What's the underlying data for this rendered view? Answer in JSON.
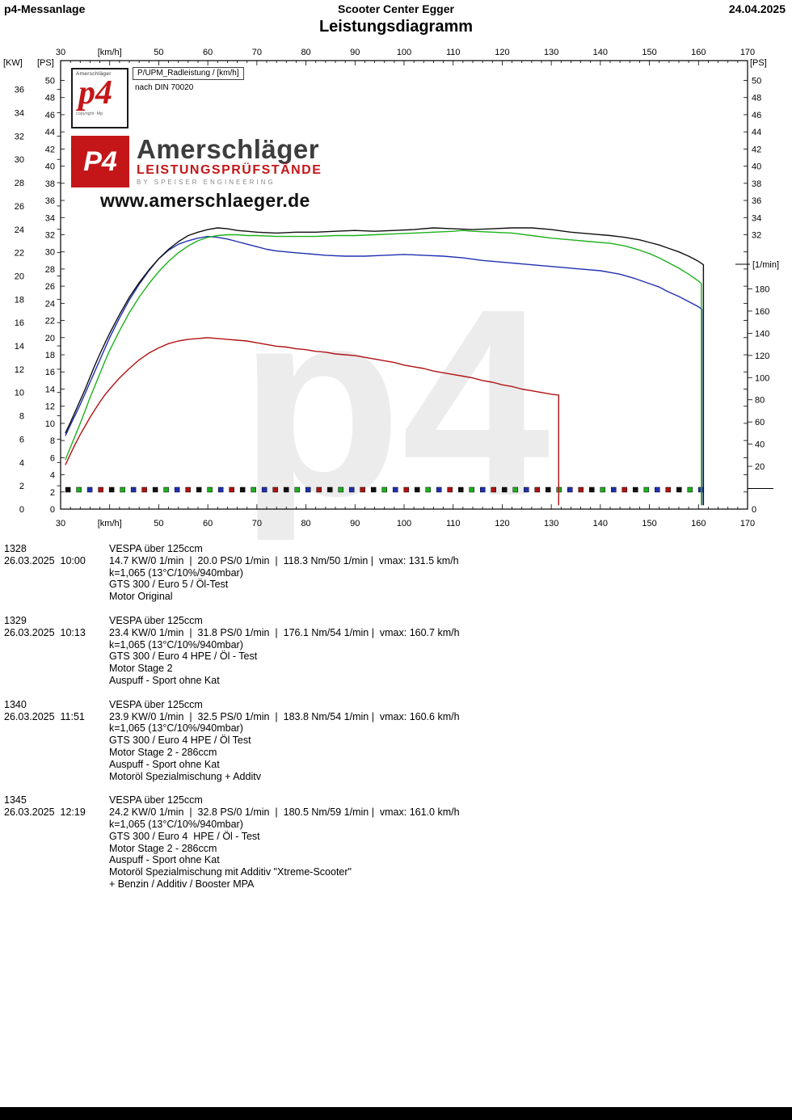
{
  "header": {
    "app": "p4-Messanlage",
    "center": "Scooter Center Egger",
    "date": "24.04.2025",
    "title": "Leistungsdiagramm"
  },
  "legend": {
    "line1": "P/UPM_Radleistung / [km/h]",
    "line2": "nach DIN 70020"
  },
  "branding": {
    "logo_box": {
      "top": "Amerschläger",
      "main": "p4",
      "bottom": "copyright ·Mp"
    },
    "banner": {
      "logo": "P4",
      "name": "Amerschläger",
      "sub": "LEISTUNGSPRÜFSTÄNDE",
      "sub2": "BY SPEISER ENGINEERING",
      "url": "www.amerschlaeger.de"
    },
    "red": "#c41619",
    "dark": "#3d3d3d"
  },
  "watermark": "p4",
  "chart_data": {
    "type": "line",
    "title": "Leistungsdiagramm",
    "x_axis": {
      "label": "[km/h]",
      "min": 30,
      "max": 170,
      "tick_values": [
        30,
        50,
        60,
        70,
        80,
        90,
        100,
        110,
        120,
        130,
        140,
        150,
        160,
        170
      ],
      "unit_label_at": 40
    },
    "ps_axis": {
      "label": "[PS]",
      "min": 0,
      "max": 50,
      "step": 2
    },
    "kw_axis": {
      "label": "[KW]",
      "min": 0,
      "max": 36,
      "step": 2,
      "ps_per_kw": 1.35962
    },
    "rpm_axis": {
      "label": "[1/min]",
      "min": 0,
      "max": 180,
      "step": 20
    },
    "rpm_trace": {
      "value": 0,
      "start_kmh": 31.5,
      "end_kmh": 160.5,
      "count": 59,
      "colors": [
        "#101010",
        "#1db11d",
        "#2030b0",
        "#b01212"
      ]
    },
    "grid": false,
    "series": [
      {
        "run": "1328",
        "name": "Motor Original",
        "color": "#b01212",
        "peak_ps": 20.0,
        "vmax_kmh": 131.5,
        "points": [
          [
            31,
            5.2
          ],
          [
            32,
            6.4
          ],
          [
            33,
            7.6
          ],
          [
            34,
            8.7
          ],
          [
            35,
            9.7
          ],
          [
            36,
            10.7
          ],
          [
            37,
            11.6
          ],
          [
            38,
            12.5
          ],
          [
            39,
            13.3
          ],
          [
            40,
            14.0
          ],
          [
            42,
            15.3
          ],
          [
            44,
            16.4
          ],
          [
            46,
            17.4
          ],
          [
            48,
            18.2
          ],
          [
            50,
            18.8
          ],
          [
            52,
            19.3
          ],
          [
            54,
            19.6
          ],
          [
            56,
            19.8
          ],
          [
            58,
            19.9
          ],
          [
            60,
            20.0
          ],
          [
            62,
            19.9
          ],
          [
            64,
            19.8
          ],
          [
            66,
            19.7
          ],
          [
            68,
            19.6
          ],
          [
            70,
            19.4
          ],
          [
            72,
            19.2
          ],
          [
            74,
            19.0
          ],
          [
            76,
            18.9
          ],
          [
            78,
            18.7
          ],
          [
            80,
            18.6
          ],
          [
            82,
            18.4
          ],
          [
            84,
            18.3
          ],
          [
            86,
            18.1
          ],
          [
            88,
            18.0
          ],
          [
            90,
            17.9
          ],
          [
            92,
            17.7
          ],
          [
            94,
            17.5
          ],
          [
            96,
            17.3
          ],
          [
            98,
            17.1
          ],
          [
            100,
            16.8
          ],
          [
            102,
            16.6
          ],
          [
            104,
            16.4
          ],
          [
            106,
            16.1
          ],
          [
            108,
            15.9
          ],
          [
            110,
            15.7
          ],
          [
            112,
            15.5
          ],
          [
            114,
            15.3
          ],
          [
            116,
            15.0
          ],
          [
            118,
            14.8
          ],
          [
            120,
            14.5
          ],
          [
            122,
            14.3
          ],
          [
            124,
            14.0
          ],
          [
            126,
            13.8
          ],
          [
            128,
            13.6
          ],
          [
            130,
            13.4
          ],
          [
            131.5,
            13.3
          ],
          [
            131.5,
            0.5
          ]
        ]
      },
      {
        "run": "1329",
        "name": "Motor Stage 2",
        "color": "#2030b0",
        "peak_ps": 31.8,
        "vmax_kmh": 160.7,
        "points": [
          [
            31,
            8.6
          ],
          [
            32,
            9.8
          ],
          [
            33,
            11.0
          ],
          [
            34,
            12.2
          ],
          [
            35,
            13.5
          ],
          [
            36,
            14.8
          ],
          [
            37,
            16.1
          ],
          [
            38,
            17.4
          ],
          [
            39,
            18.7
          ],
          [
            40,
            20.0
          ],
          [
            42,
            22.3
          ],
          [
            44,
            24.4
          ],
          [
            46,
            26.2
          ],
          [
            48,
            27.8
          ],
          [
            50,
            29.2
          ],
          [
            52,
            30.2
          ],
          [
            54,
            30.9
          ],
          [
            56,
            31.3
          ],
          [
            58,
            31.6
          ],
          [
            60,
            31.8
          ],
          [
            62,
            31.7
          ],
          [
            64,
            31.5
          ],
          [
            66,
            31.2
          ],
          [
            68,
            30.9
          ],
          [
            70,
            30.6
          ],
          [
            72,
            30.3
          ],
          [
            74,
            30.1
          ],
          [
            76,
            30.0
          ],
          [
            78,
            29.9
          ],
          [
            80,
            29.8
          ],
          [
            84,
            29.6
          ],
          [
            88,
            29.5
          ],
          [
            92,
            29.5
          ],
          [
            96,
            29.6
          ],
          [
            100,
            29.7
          ],
          [
            104,
            29.6
          ],
          [
            108,
            29.5
          ],
          [
            112,
            29.3
          ],
          [
            116,
            29.0
          ],
          [
            120,
            28.8
          ],
          [
            124,
            28.6
          ],
          [
            128,
            28.4
          ],
          [
            132,
            28.2
          ],
          [
            136,
            28.0
          ],
          [
            140,
            27.8
          ],
          [
            144,
            27.4
          ],
          [
            147,
            26.9
          ],
          [
            150,
            26.3
          ],
          [
            152,
            25.9
          ],
          [
            154,
            25.3
          ],
          [
            156,
            24.8
          ],
          [
            158,
            24.2
          ],
          [
            160,
            23.6
          ],
          [
            160.7,
            23.3
          ],
          [
            160.7,
            0.5
          ]
        ]
      },
      {
        "run": "1340",
        "name": "Motor Stage 2 - 286ccm",
        "color": "#1db11d",
        "peak_ps": 32.5,
        "vmax_kmh": 160.6,
        "points": [
          [
            31,
            5.8
          ],
          [
            32,
            7.2
          ],
          [
            33,
            8.6
          ],
          [
            34,
            10.0
          ],
          [
            35,
            11.5
          ],
          [
            36,
            13.0
          ],
          [
            37,
            14.4
          ],
          [
            38,
            15.8
          ],
          [
            39,
            17.2
          ],
          [
            40,
            18.5
          ],
          [
            42,
            20.8
          ],
          [
            44,
            22.9
          ],
          [
            46,
            24.7
          ],
          [
            48,
            26.3
          ],
          [
            50,
            27.7
          ],
          [
            52,
            28.9
          ],
          [
            54,
            29.9
          ],
          [
            56,
            30.7
          ],
          [
            58,
            31.3
          ],
          [
            60,
            31.7
          ],
          [
            62,
            31.9
          ],
          [
            64,
            32.0
          ],
          [
            66,
            32.0
          ],
          [
            68,
            31.9
          ],
          [
            70,
            31.9
          ],
          [
            74,
            31.8
          ],
          [
            78,
            31.8
          ],
          [
            82,
            31.8
          ],
          [
            86,
            31.9
          ],
          [
            90,
            31.9
          ],
          [
            94,
            32.0
          ],
          [
            98,
            32.1
          ],
          [
            102,
            32.2
          ],
          [
            106,
            32.3
          ],
          [
            110,
            32.4
          ],
          [
            112,
            32.5
          ],
          [
            114,
            32.4
          ],
          [
            118,
            32.3
          ],
          [
            122,
            32.2
          ],
          [
            126,
            31.9
          ],
          [
            130,
            31.6
          ],
          [
            134,
            31.4
          ],
          [
            138,
            31.2
          ],
          [
            142,
            31.0
          ],
          [
            145,
            30.7
          ],
          [
            148,
            30.2
          ],
          [
            150,
            29.8
          ],
          [
            152,
            29.3
          ],
          [
            154,
            28.7
          ],
          [
            156,
            28.1
          ],
          [
            158,
            27.4
          ],
          [
            160,
            26.6
          ],
          [
            160.6,
            26.3
          ],
          [
            160.6,
            0.5
          ]
        ]
      },
      {
        "run": "1345",
        "name": "Motor Stage 2 - 286ccm + Additiv",
        "color": "#101010",
        "peak_ps": 32.8,
        "vmax_kmh": 161.0,
        "points": [
          [
            31,
            8.9
          ],
          [
            32,
            10.1
          ],
          [
            33,
            11.4
          ],
          [
            34,
            12.7
          ],
          [
            35,
            14.0
          ],
          [
            36,
            15.4
          ],
          [
            37,
            16.8
          ],
          [
            38,
            18.1
          ],
          [
            39,
            19.3
          ],
          [
            40,
            20.5
          ],
          [
            42,
            22.7
          ],
          [
            44,
            24.7
          ],
          [
            46,
            26.4
          ],
          [
            48,
            27.9
          ],
          [
            50,
            29.2
          ],
          [
            52,
            30.3
          ],
          [
            54,
            31.2
          ],
          [
            56,
            31.9
          ],
          [
            58,
            32.3
          ],
          [
            60,
            32.6
          ],
          [
            62,
            32.8
          ],
          [
            64,
            32.7
          ],
          [
            66,
            32.5
          ],
          [
            68,
            32.4
          ],
          [
            70,
            32.3
          ],
          [
            74,
            32.2
          ],
          [
            78,
            32.3
          ],
          [
            82,
            32.3
          ],
          [
            86,
            32.4
          ],
          [
            90,
            32.5
          ],
          [
            94,
            32.4
          ],
          [
            98,
            32.5
          ],
          [
            102,
            32.6
          ],
          [
            106,
            32.8
          ],
          [
            110,
            32.7
          ],
          [
            114,
            32.6
          ],
          [
            118,
            32.7
          ],
          [
            122,
            32.8
          ],
          [
            126,
            32.8
          ],
          [
            130,
            32.6
          ],
          [
            134,
            32.3
          ],
          [
            138,
            32.1
          ],
          [
            142,
            31.9
          ],
          [
            145,
            31.7
          ],
          [
            148,
            31.4
          ],
          [
            150,
            31.1
          ],
          [
            152,
            30.8
          ],
          [
            154,
            30.4
          ],
          [
            156,
            30.0
          ],
          [
            158,
            29.5
          ],
          [
            160,
            28.9
          ],
          [
            161,
            28.5
          ],
          [
            161,
            0.5
          ]
        ]
      }
    ]
  },
  "runs": [
    {
      "id": "1328",
      "datetime": "26.03.2025  10:00",
      "model": "VESPA über 125ccm",
      "results": "14.7 KW/0 1/min  |  20.0 PS/0 1/min  |  118.3 Nm/50 1/min |  vmax: 131.5 km/h",
      "details": [
        "k=1,065 (13°C/10%/940mbar)",
        "GTS 300 / Euro 5 / Öl-Test",
        "Motor Original"
      ]
    },
    {
      "id": "1329",
      "datetime": "26.03.2025  10:13",
      "model": "VESPA über 125ccm",
      "results": "23.4 KW/0 1/min  |  31.8 PS/0 1/min  |  176.1 Nm/54 1/min |  vmax: 160.7 km/h",
      "details": [
        "k=1,065 (13°C/10%/940mbar)",
        "GTS 300 / Euro 4 HPE / Öl - Test",
        "Motor Stage 2",
        "Auspuff - Sport ohne Kat"
      ]
    },
    {
      "id": "1340",
      "datetime": "26.03.2025  11:51",
      "model": "VESPA über 125ccm",
      "results": "23.9 KW/0 1/min  |  32.5 PS/0 1/min  |  183.8 Nm/54 1/min |  vmax: 160.6 km/h",
      "details": [
        "k=1,065 (13°C/10%/940mbar)",
        "GTS 300 / Euro 4 HPE / Öl Test",
        "Motor Stage 2 - 286ccm",
        "Auspuff - Sport ohne Kat",
        "Motoröl Spezialmischung + Additv"
      ]
    },
    {
      "id": "1345",
      "datetime": "26.03.2025  12:19",
      "model": "VESPA über 125ccm",
      "results": "24.2 KW/0 1/min  |  32.8 PS/0 1/min  |  180.5 Nm/59 1/min |  vmax: 161.0 km/h",
      "details": [
        "k=1,065 (13°C/10%/940mbar)",
        "GTS 300 / Euro 4  HPE / Öl - Test",
        "Motor Stage 2 - 286ccm",
        "Auspuff - Sport ohne Kat",
        "Motoröl Spezialmischung mit Additiv \"Xtreme-Scooter\"",
        "+ Benzin / Additiv / Booster MPA"
      ]
    }
  ]
}
